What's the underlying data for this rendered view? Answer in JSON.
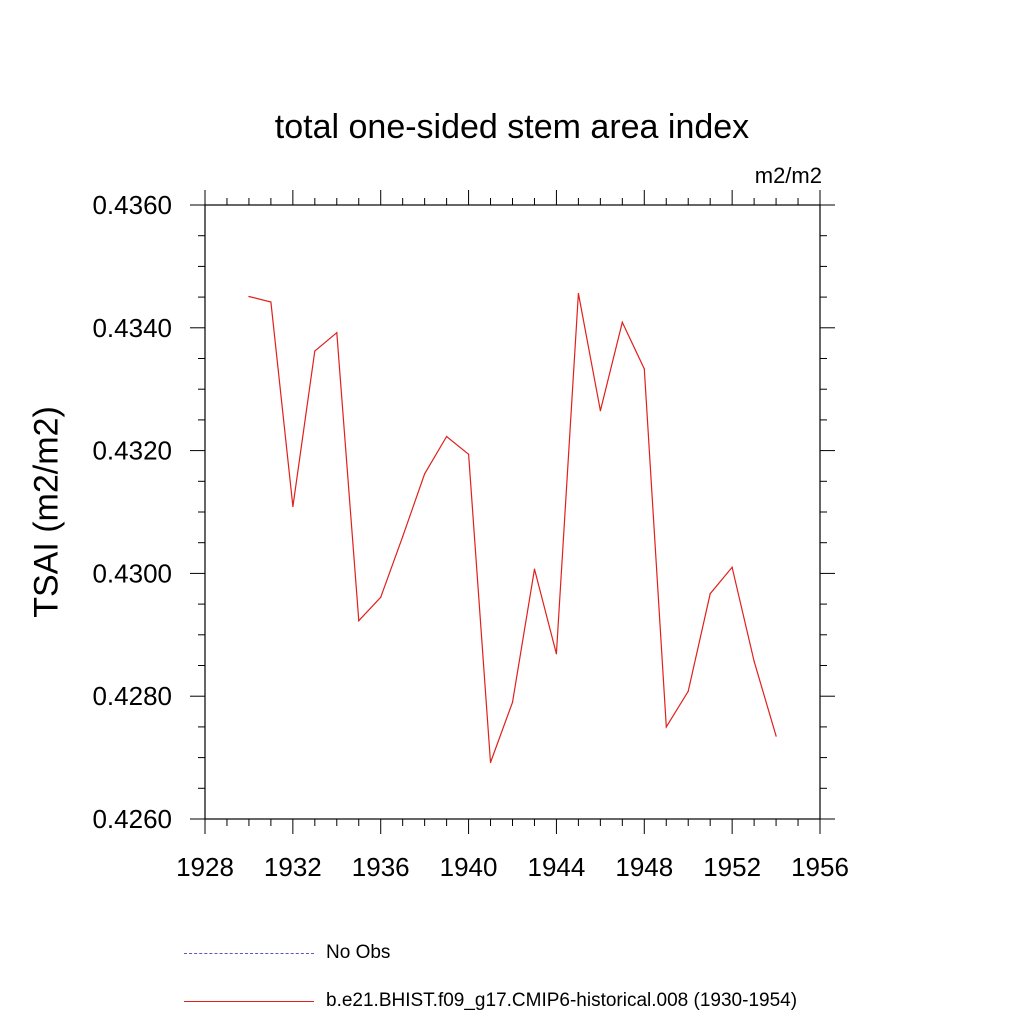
{
  "chart_data": {
    "type": "line",
    "title": "total one-sided stem area index",
    "units_label": "m2/m2",
    "ylabel": "TSAI  (m2/m2)",
    "xlabel": "",
    "xlim": [
      1928,
      1956
    ],
    "ylim": [
      0.426,
      0.436
    ],
    "xticks": [
      1928,
      1932,
      1936,
      1940,
      1944,
      1948,
      1952,
      1956
    ],
    "yticks": [
      "0.4260",
      "0.4280",
      "0.4300",
      "0.4320",
      "0.4340",
      "0.4360"
    ],
    "grid": false,
    "legend_position": "bottom",
    "series": [
      {
        "name": "b.e21.BHIST.f09_g17.CMIP6-historical.008 (1930-1954)",
        "color": "#e0201b",
        "style": "solid",
        "x": [
          1930,
          1931,
          1932,
          1933,
          1934,
          1935,
          1936,
          1937,
          1938,
          1939,
          1940,
          1941,
          1942,
          1943,
          1944,
          1945,
          1946,
          1947,
          1948,
          1949,
          1950,
          1951,
          1952,
          1953,
          1954
        ],
        "values": [
          0.43451,
          0.43442,
          0.43109,
          0.43362,
          0.43392,
          0.42923,
          0.42961,
          0.4306,
          0.43162,
          0.43223,
          0.43194,
          0.42692,
          0.4279,
          0.43007,
          0.42869,
          0.43456,
          0.43265,
          0.43409,
          0.43333,
          0.4275,
          0.42808,
          0.42967,
          0.4301,
          0.42857,
          0.42735
        ]
      }
    ],
    "legend": [
      {
        "label": "No Obs",
        "style": "dashed",
        "color": "#5a5ab8"
      },
      {
        "label": "b.e21.BHIST.f09_g17.CMIP6-historical.008 (1930-1954)",
        "style": "solid",
        "color": "#e0201b"
      }
    ]
  }
}
